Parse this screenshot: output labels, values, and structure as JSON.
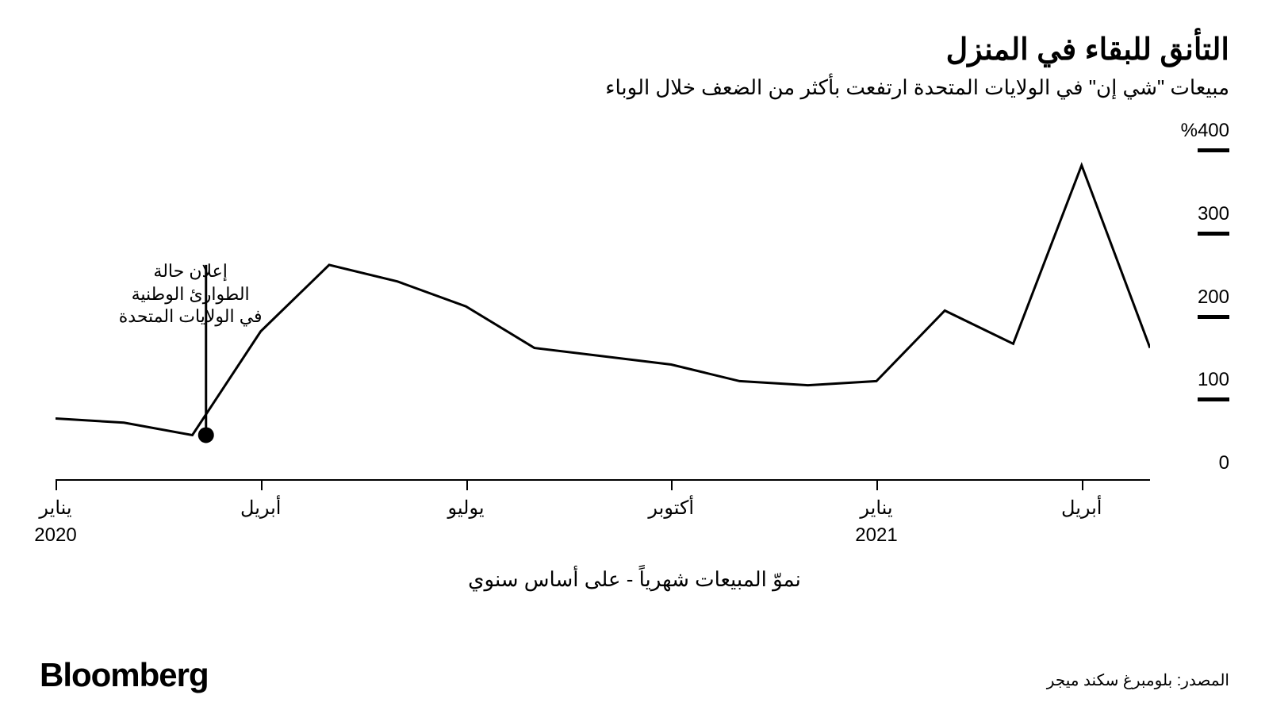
{
  "chart": {
    "type": "line",
    "title": "التأنق للبقاء في المنزل",
    "subtitle": "مبيعات \"شي إن\" في الولايات المتحدة ارتفعت بأكثر من الضعف خلال الوباء",
    "xlabel": "نموّ المبيعات شهرياً - على أساس سنوي",
    "source": "المصدر: بلومبرغ سكند ميجر",
    "brand": "Bloomberg",
    "line_color": "#000000",
    "line_width": 3,
    "background_color": "#ffffff",
    "font_family": "Arial",
    "title_fontsize": 38,
    "subtitle_fontsize": 26,
    "axis_label_fontsize": 24,
    "y_axis": {
      "ticks": [
        0,
        100,
        200,
        300,
        400
      ],
      "suffix_on_top": "%",
      "min": 0,
      "max": 430,
      "tick_mark_width": 40,
      "tick_mark_thickness": 5
    },
    "x_axis": {
      "labels": [
        {
          "pos": 0,
          "line1": "يناير",
          "line2": "2020"
        },
        {
          "pos": 3,
          "line1": "أبريل",
          "line2": ""
        },
        {
          "pos": 6,
          "line1": "يوليو",
          "line2": ""
        },
        {
          "pos": 9,
          "line1": "أكتوبر",
          "line2": ""
        },
        {
          "pos": 12,
          "line1": "يناير",
          "line2": "2021"
        },
        {
          "pos": 15,
          "line1": "أبريل",
          "line2": ""
        }
      ],
      "min": 0,
      "max": 16
    },
    "series": {
      "points": [
        {
          "x": 0,
          "y": 75
        },
        {
          "x": 1,
          "y": 70
        },
        {
          "x": 2,
          "y": 55
        },
        {
          "x": 3,
          "y": 180
        },
        {
          "x": 4,
          "y": 260
        },
        {
          "x": 5,
          "y": 240
        },
        {
          "x": 6,
          "y": 210
        },
        {
          "x": 7,
          "y": 160
        },
        {
          "x": 8,
          "y": 150
        },
        {
          "x": 9,
          "y": 140
        },
        {
          "x": 10,
          "y": 120
        },
        {
          "x": 11,
          "y": 115
        },
        {
          "x": 12,
          "y": 120
        },
        {
          "x": 13,
          "y": 205
        },
        {
          "x": 14,
          "y": 165
        },
        {
          "x": 15,
          "y": 380
        },
        {
          "x": 16,
          "y": 160
        }
      ]
    },
    "annotation": {
      "text_lines": [
        "إعلان حالة",
        "الطوارئ الوطنية",
        "في الولايات المتحدة"
      ],
      "marker_x": 2.2,
      "marker_y": 55,
      "marker_line_top_y": 260,
      "dot_radius": 10,
      "text_offset_x": -110
    }
  }
}
